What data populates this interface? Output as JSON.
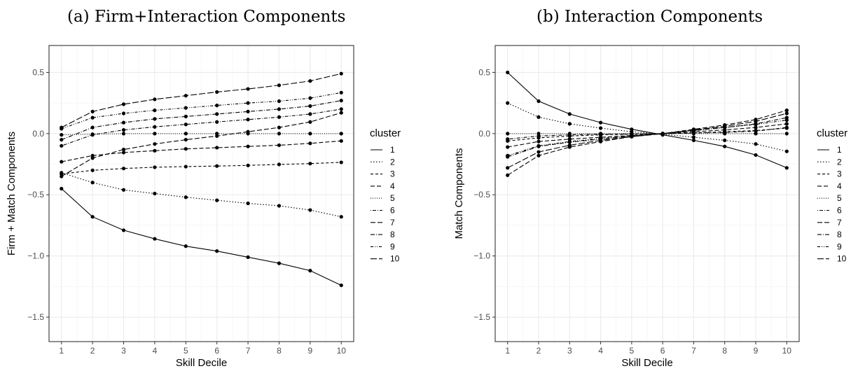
{
  "chart_data": [
    {
      "type": "line",
      "title": "(a) Firm+Interaction Components",
      "xlabel": "Skill Decile",
      "ylabel": "Firm + Match Components",
      "x": [
        1,
        2,
        3,
        4,
        5,
        6,
        7,
        8,
        9,
        10
      ],
      "xlim": [
        0.6,
        10.4
      ],
      "ylim": [
        -1.7,
        0.72
      ],
      "yticks": [
        0.5,
        0.0,
        -0.5,
        -1.0,
        -1.5
      ],
      "ytick_labels": [
        "0.5",
        "0.0",
        "−0.5",
        "−1.0",
        "−1.5"
      ],
      "grid": true,
      "legend": {
        "title": "cluster",
        "position": "right"
      },
      "series": [
        {
          "name": "1",
          "dash": "",
          "values": [
            -0.45,
            -0.68,
            -0.79,
            -0.86,
            -0.92,
            -0.96,
            -1.01,
            -1.06,
            -1.12,
            -1.24
          ]
        },
        {
          "name": "2",
          "dash": "1.5,2.5",
          "values": [
            -0.32,
            -0.4,
            -0.46,
            -0.49,
            -0.52,
            -0.545,
            -0.57,
            -0.59,
            -0.625,
            -0.68
          ]
        },
        {
          "name": "3",
          "dash": "4,3",
          "values": [
            -0.33,
            -0.3,
            -0.285,
            -0.275,
            -0.27,
            -0.265,
            -0.26,
            -0.252,
            -0.245,
            -0.235
          ]
        },
        {
          "name": "4",
          "dash": "6,3",
          "values": [
            -0.23,
            -0.18,
            -0.155,
            -0.14,
            -0.125,
            -0.115,
            -0.105,
            -0.095,
            -0.08,
            -0.06
          ]
        },
        {
          "name": "5",
          "dash": "1,2",
          "values": [
            -0.01,
            -0.005,
            0.0,
            0.0,
            0.0,
            0.0,
            0.0,
            0.0,
            0.0,
            0.0
          ]
        },
        {
          "name": "6",
          "dash": "1,2,5,2",
          "values": [
            -0.1,
            -0.01,
            0.03,
            0.055,
            0.075,
            0.095,
            0.115,
            0.135,
            0.16,
            0.2
          ]
        },
        {
          "name": "7",
          "dash": "7,3",
          "values": [
            -0.35,
            -0.2,
            -0.13,
            -0.085,
            -0.05,
            -0.02,
            0.015,
            0.05,
            0.095,
            0.17
          ]
        },
        {
          "name": "8",
          "dash": "6,2,1,2",
          "values": [
            -0.05,
            0.05,
            0.09,
            0.12,
            0.14,
            0.16,
            0.18,
            0.2,
            0.225,
            0.27
          ]
        },
        {
          "name": "9",
          "dash": "4,2,1,2,1,2",
          "values": [
            0.04,
            0.13,
            0.165,
            0.19,
            0.21,
            0.23,
            0.25,
            0.265,
            0.29,
            0.335
          ]
        },
        {
          "name": "10",
          "dash": "9,3",
          "values": [
            0.05,
            0.18,
            0.24,
            0.28,
            0.31,
            0.34,
            0.365,
            0.395,
            0.43,
            0.49
          ]
        }
      ]
    },
    {
      "type": "line",
      "title": "(b) Interaction Components",
      "xlabel": "Skill Decile",
      "ylabel": "Match Components",
      "x": [
        1,
        2,
        3,
        4,
        5,
        6,
        7,
        8,
        9,
        10
      ],
      "xlim": [
        0.6,
        10.4
      ],
      "ylim": [
        -1.7,
        0.72
      ],
      "yticks": [
        0.5,
        0.0,
        -0.5,
        -1.0,
        -1.5
      ],
      "ytick_labels": [
        "0.5",
        "0.0",
        "−0.5",
        "−1.0",
        "−1.5"
      ],
      "grid": true,
      "legend": {
        "title": "cluster",
        "position": "right"
      },
      "series": [
        {
          "name": "1",
          "dash": "",
          "values": [
            0.5,
            0.265,
            0.16,
            0.09,
            0.035,
            -0.01,
            -0.055,
            -0.105,
            -0.175,
            -0.28
          ]
        },
        {
          "name": "2",
          "dash": "1.5,2.5",
          "values": [
            0.25,
            0.135,
            0.08,
            0.045,
            0.015,
            -0.005,
            -0.03,
            -0.055,
            -0.085,
            -0.145
          ]
        },
        {
          "name": "3",
          "dash": "4,3",
          "values": [
            -0.06,
            -0.035,
            -0.02,
            -0.01,
            -0.005,
            0.0,
            0.005,
            0.015,
            0.025,
            0.045
          ]
        },
        {
          "name": "4",
          "dash": "6,3",
          "values": [
            -0.11,
            -0.065,
            -0.045,
            -0.03,
            -0.015,
            0.0,
            0.015,
            0.03,
            0.05,
            0.08
          ]
        },
        {
          "name": "5",
          "dash": "1,2",
          "values": [
            0.0,
            0.0,
            0.0,
            0.0,
            0.0,
            0.0,
            0.0,
            0.0,
            0.0,
            0.0
          ]
        },
        {
          "name": "6",
          "dash": "1,2,5,2",
          "values": [
            -0.045,
            -0.02,
            -0.01,
            -0.005,
            -0.003,
            0.0,
            0.005,
            0.01,
            0.02,
            0.05
          ]
        },
        {
          "name": "7",
          "dash": "7,3",
          "values": [
            -0.34,
            -0.18,
            -0.11,
            -0.065,
            -0.025,
            0.0,
            0.035,
            0.07,
            0.115,
            0.19
          ]
        },
        {
          "name": "8",
          "dash": "6,2,1,2",
          "values": [
            -0.19,
            -0.105,
            -0.07,
            -0.045,
            -0.02,
            0.0,
            0.025,
            0.05,
            0.08,
            0.13
          ]
        },
        {
          "name": "9",
          "dash": "4,2,1,2,1,2",
          "values": [
            -0.18,
            -0.1,
            -0.065,
            -0.04,
            -0.02,
            0.0,
            0.025,
            0.05,
            0.075,
            0.11
          ]
        },
        {
          "name": "10",
          "dash": "9,3",
          "values": [
            -0.28,
            -0.15,
            -0.095,
            -0.055,
            -0.025,
            0.0,
            0.03,
            0.06,
            0.1,
            0.165
          ]
        }
      ]
    }
  ]
}
